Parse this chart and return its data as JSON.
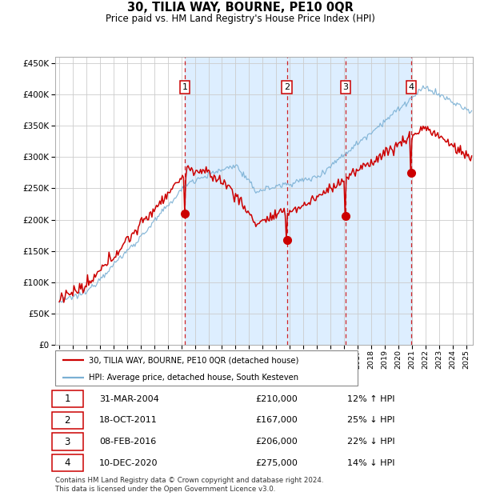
{
  "title": "30, TILIA WAY, BOURNE, PE10 0QR",
  "subtitle": "Price paid vs. HM Land Registry's House Price Index (HPI)",
  "legend_line1": "30, TILIA WAY, BOURNE, PE10 0QR (detached house)",
  "legend_line2": "HPI: Average price, detached house, South Kesteven",
  "transactions": [
    {
      "num": 1,
      "date": "31-MAR-2004",
      "price": 210000,
      "hpi_pct": "12% ↑ HPI",
      "x_year": 2004.25
    },
    {
      "num": 2,
      "date": "18-OCT-2011",
      "price": 167000,
      "hpi_pct": "25% ↓ HPI",
      "x_year": 2011.79
    },
    {
      "num": 3,
      "date": "08-FEB-2016",
      "price": 206000,
      "hpi_pct": "22% ↓ HPI",
      "x_year": 2016.12
    },
    {
      "num": 4,
      "date": "10-DEC-2020",
      "price": 275000,
      "hpi_pct": "14% ↓ HPI",
      "x_year": 2020.95
    }
  ],
  "price_line_color": "#cc0000",
  "hpi_line_color": "#7ab0d4",
  "hpi_fill_color": "#ddeeff",
  "dashed_line_color": "#cc0000",
  "dot_color": "#cc0000",
  "grid_color": "#cccccc",
  "background_color": "#ffffff",
  "ylim": [
    0,
    460000
  ],
  "yticks": [
    0,
    50000,
    100000,
    150000,
    200000,
    250000,
    300000,
    350000,
    400000,
    450000
  ],
  "xlim_start": 1994.7,
  "xlim_end": 2025.5,
  "footer": "Contains HM Land Registry data © Crown copyright and database right 2024.\nThis data is licensed under the Open Government Licence v3.0."
}
